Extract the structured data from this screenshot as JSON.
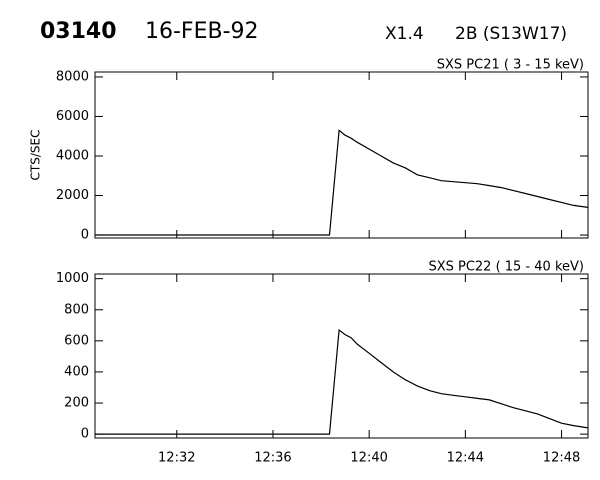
{
  "header": {
    "event": "03140",
    "date": "16-FEB-92",
    "class": "X1.4",
    "optical": "2B (S13W17)"
  },
  "chart_data": [
    {
      "type": "line",
      "title": "SXS PC21  (  3 - 15 keV)",
      "y_label": "CTS/SEC",
      "x": [
        748.6,
        758.35,
        758.75,
        759.0,
        759.25,
        759.5,
        760.0,
        760.5,
        761.0,
        761.5,
        762.0,
        762.5,
        763.0,
        763.5,
        764.0,
        764.5,
        765.0,
        765.5,
        766.0,
        766.5,
        767.0,
        767.5,
        768.0,
        768.5,
        769.1
      ],
      "series": [
        {
          "color": "#000000",
          "values": [
            0,
            0,
            5300,
            5050,
            4900,
            4700,
            4350,
            4000,
            3650,
            3400,
            3050,
            2900,
            2750,
            2700,
            2650,
            2600,
            2500,
            2400,
            2250,
            2100,
            1950,
            1800,
            1650,
            1500,
            1400
          ]
        }
      ],
      "xlim": [
        748.6,
        769.1
      ],
      "ylim": [
        -150,
        8250
      ],
      "yticks": [
        0,
        2000,
        4000,
        6000,
        8000
      ],
      "grid": false
    },
    {
      "type": "line",
      "title": "SXS PC22  ( 15 - 40 keV)",
      "x": [
        748.6,
        758.35,
        758.75,
        759.0,
        759.25,
        759.5,
        760.0,
        760.5,
        761.0,
        761.5,
        762.0,
        762.5,
        763.0,
        763.5,
        764.0,
        764.5,
        765.0,
        765.5,
        766.0,
        766.5,
        767.0,
        767.5,
        768.0,
        768.5,
        769.1
      ],
      "series": [
        {
          "color": "#000000",
          "values": [
            0,
            0,
            670,
            640,
            620,
            580,
            520,
            460,
            400,
            350,
            310,
            280,
            260,
            250,
            240,
            230,
            220,
            195,
            170,
            150,
            130,
            100,
            70,
            55,
            40
          ]
        }
      ],
      "xlim": [
        748.6,
        769.1
      ],
      "ylim": [
        -25,
        1030
      ],
      "xticks": [
        {
          "value": 752,
          "label": "12:32"
        },
        {
          "value": 756,
          "label": "12:36"
        },
        {
          "value": 760,
          "label": "12:40"
        },
        {
          "value": 764,
          "label": "12:44"
        },
        {
          "value": 768,
          "label": "12:48"
        }
      ],
      "yticks": [
        0,
        200,
        400,
        600,
        800,
        1000
      ],
      "grid": false
    }
  ]
}
